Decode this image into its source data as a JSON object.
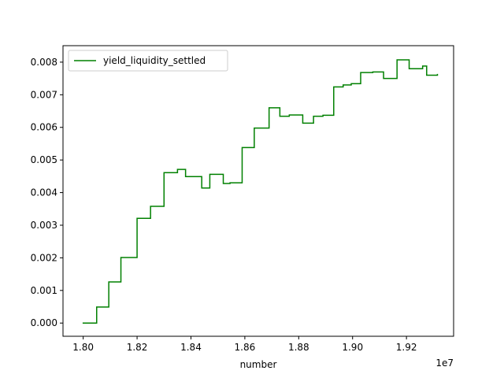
{
  "chart_data": {
    "type": "line",
    "title": "",
    "xlabel": "number",
    "ylabel": "",
    "x_offset_label": "1e7",
    "xlim": [
      1.7925,
      1.9375
    ],
    "ylim": [
      -0.000405,
      0.008505
    ],
    "x_ticks": [
      1.8,
      1.82,
      1.84,
      1.86,
      1.88,
      1.9,
      1.92
    ],
    "x_tick_labels": [
      "1.80",
      "1.82",
      "1.84",
      "1.86",
      "1.88",
      "1.90",
      "1.92"
    ],
    "y_ticks": [
      0.0,
      0.001,
      0.002,
      0.003,
      0.004,
      0.005,
      0.006,
      0.007,
      0.008
    ],
    "y_tick_labels": [
      "0.000",
      "0.001",
      "0.002",
      "0.003",
      "0.004",
      "0.005",
      "0.006",
      "0.007",
      "0.008"
    ],
    "grid": false,
    "legend_position": "upper-left",
    "series": [
      {
        "name": "yield_liquidity_settled",
        "color": "#008000",
        "step": true,
        "x": [
          1.8,
          1.805,
          1.8095,
          1.814,
          1.82,
          1.825,
          1.83,
          1.835,
          1.838,
          1.844,
          1.847,
          1.852,
          1.8545,
          1.859,
          1.8635,
          1.869,
          1.873,
          1.8765,
          1.8815,
          1.8855,
          1.889,
          1.893,
          1.8965,
          1.8995,
          1.903,
          1.9075,
          1.9115,
          1.9165,
          1.921,
          1.926,
          1.9275,
          1.9315
        ],
        "y": [
          0.0,
          0.00049,
          0.00126,
          0.00201,
          0.00321,
          0.00358,
          0.00461,
          0.00471,
          0.00449,
          0.00414,
          0.00456,
          0.00428,
          0.0043,
          0.00538,
          0.00598,
          0.0066,
          0.00634,
          0.00638,
          0.00613,
          0.00634,
          0.00637,
          0.00724,
          0.0073,
          0.00734,
          0.00768,
          0.0077,
          0.0075,
          0.00807,
          0.0078,
          0.00788,
          0.0076,
          0.00762
        ]
      }
    ]
  }
}
